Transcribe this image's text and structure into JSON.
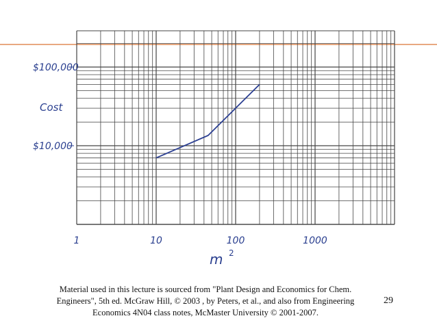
{
  "chart_data": {
    "type": "line",
    "title": "",
    "xlabel": "m",
    "xlabel_superscript": "2",
    "ylabel": "Cost",
    "x_scale": "log",
    "y_scale": "log",
    "xlim": [
      1,
      10000
    ],
    "ylim": [
      1000,
      100000
    ],
    "x_tick_labels": [
      {
        "value": 1,
        "label": "1"
      },
      {
        "value": 10,
        "label": "10"
      },
      {
        "value": 100,
        "label": "100"
      },
      {
        "value": 1000,
        "label": "1000"
      }
    ],
    "y_tick_labels": [
      {
        "value": 100000,
        "label": "$100,000"
      },
      {
        "value": 10000,
        "label": "$10,000"
      }
    ],
    "grid": true,
    "series": [
      {
        "color": "#2b3f92",
        "points": [
          {
            "x": 10,
            "y": 7000
          },
          {
            "x": 45,
            "y": 13500
          },
          {
            "x": 100,
            "y": 30000
          },
          {
            "x": 200,
            "y": 60000
          }
        ]
      }
    ]
  },
  "colors": {
    "grid": "#444444",
    "handwriting": "#2a3f8f",
    "top_rule": "#e8a880"
  },
  "footer": {
    "citation": "Material used in this lecture is sourced from \"Plant Design and Economics for Chem. Engineers\", 5th ed. McGraw Hill, © 2003 , by Peters, et al., and also from Engineering Economics 4N04 class notes, McMaster University © 2001-2007.",
    "page_number": "29"
  }
}
